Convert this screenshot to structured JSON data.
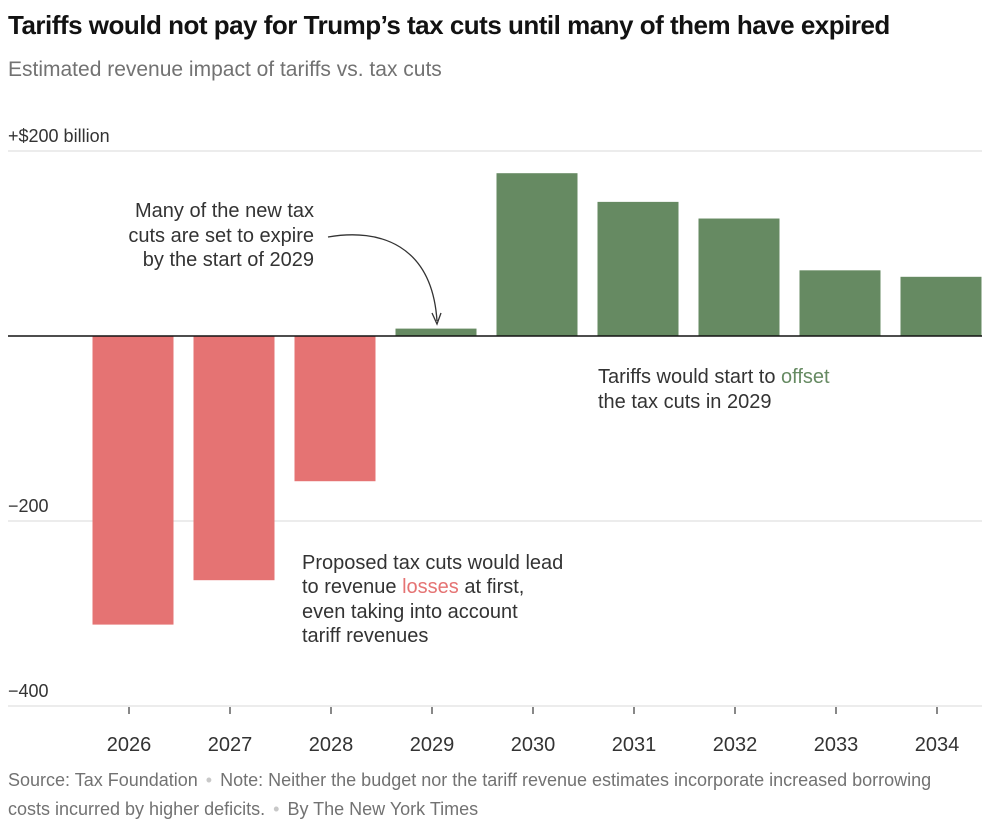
{
  "chart_data": {
    "type": "bar",
    "title": "Tariffs would not pay for Trump’s tax cuts until many of them have expired",
    "subtitle": "Estimated revenue impact of tariffs vs. tax cuts",
    "xlabel": "",
    "ylabel": "",
    "categories": [
      "2026",
      "2027",
      "2028",
      "2029",
      "2030",
      "2031",
      "2032",
      "2033",
      "2034"
    ],
    "values": [
      -312,
      -264,
      -157,
      8,
      176,
      145,
      127,
      71,
      64
    ],
    "ylim": [
      -400,
      200
    ],
    "yticks": [
      200,
      -200,
      -400
    ],
    "ytick_labels": [
      "+$200 billion",
      "−200",
      "−400"
    ],
    "negative_color": "#e57373",
    "positive_color": "#668a62",
    "gridlines": true,
    "annotations": {
      "expire": [
        "Many of the new tax",
        "cuts are set to expire",
        "by the start of 2029"
      ],
      "offset": {
        "line1_prefix": "Tariffs would start to ",
        "line1_highlight": "offset",
        "line2": "the tax cuts in 2029"
      },
      "losses": {
        "line1": "Proposed tax cuts would lead",
        "line2_prefix": "to revenue ",
        "line2_highlight": "losses",
        "line2_suffix": " at first,",
        "line3": "even taking into account",
        "line4": "tariff revenues"
      }
    }
  },
  "footer": {
    "source": "Source: Tax Foundation",
    "note": "Note: Neither the budget nor the tariff revenue estimates incorporate increased borrowing costs incurred by higher deficits.",
    "byline": "By The New York Times"
  }
}
